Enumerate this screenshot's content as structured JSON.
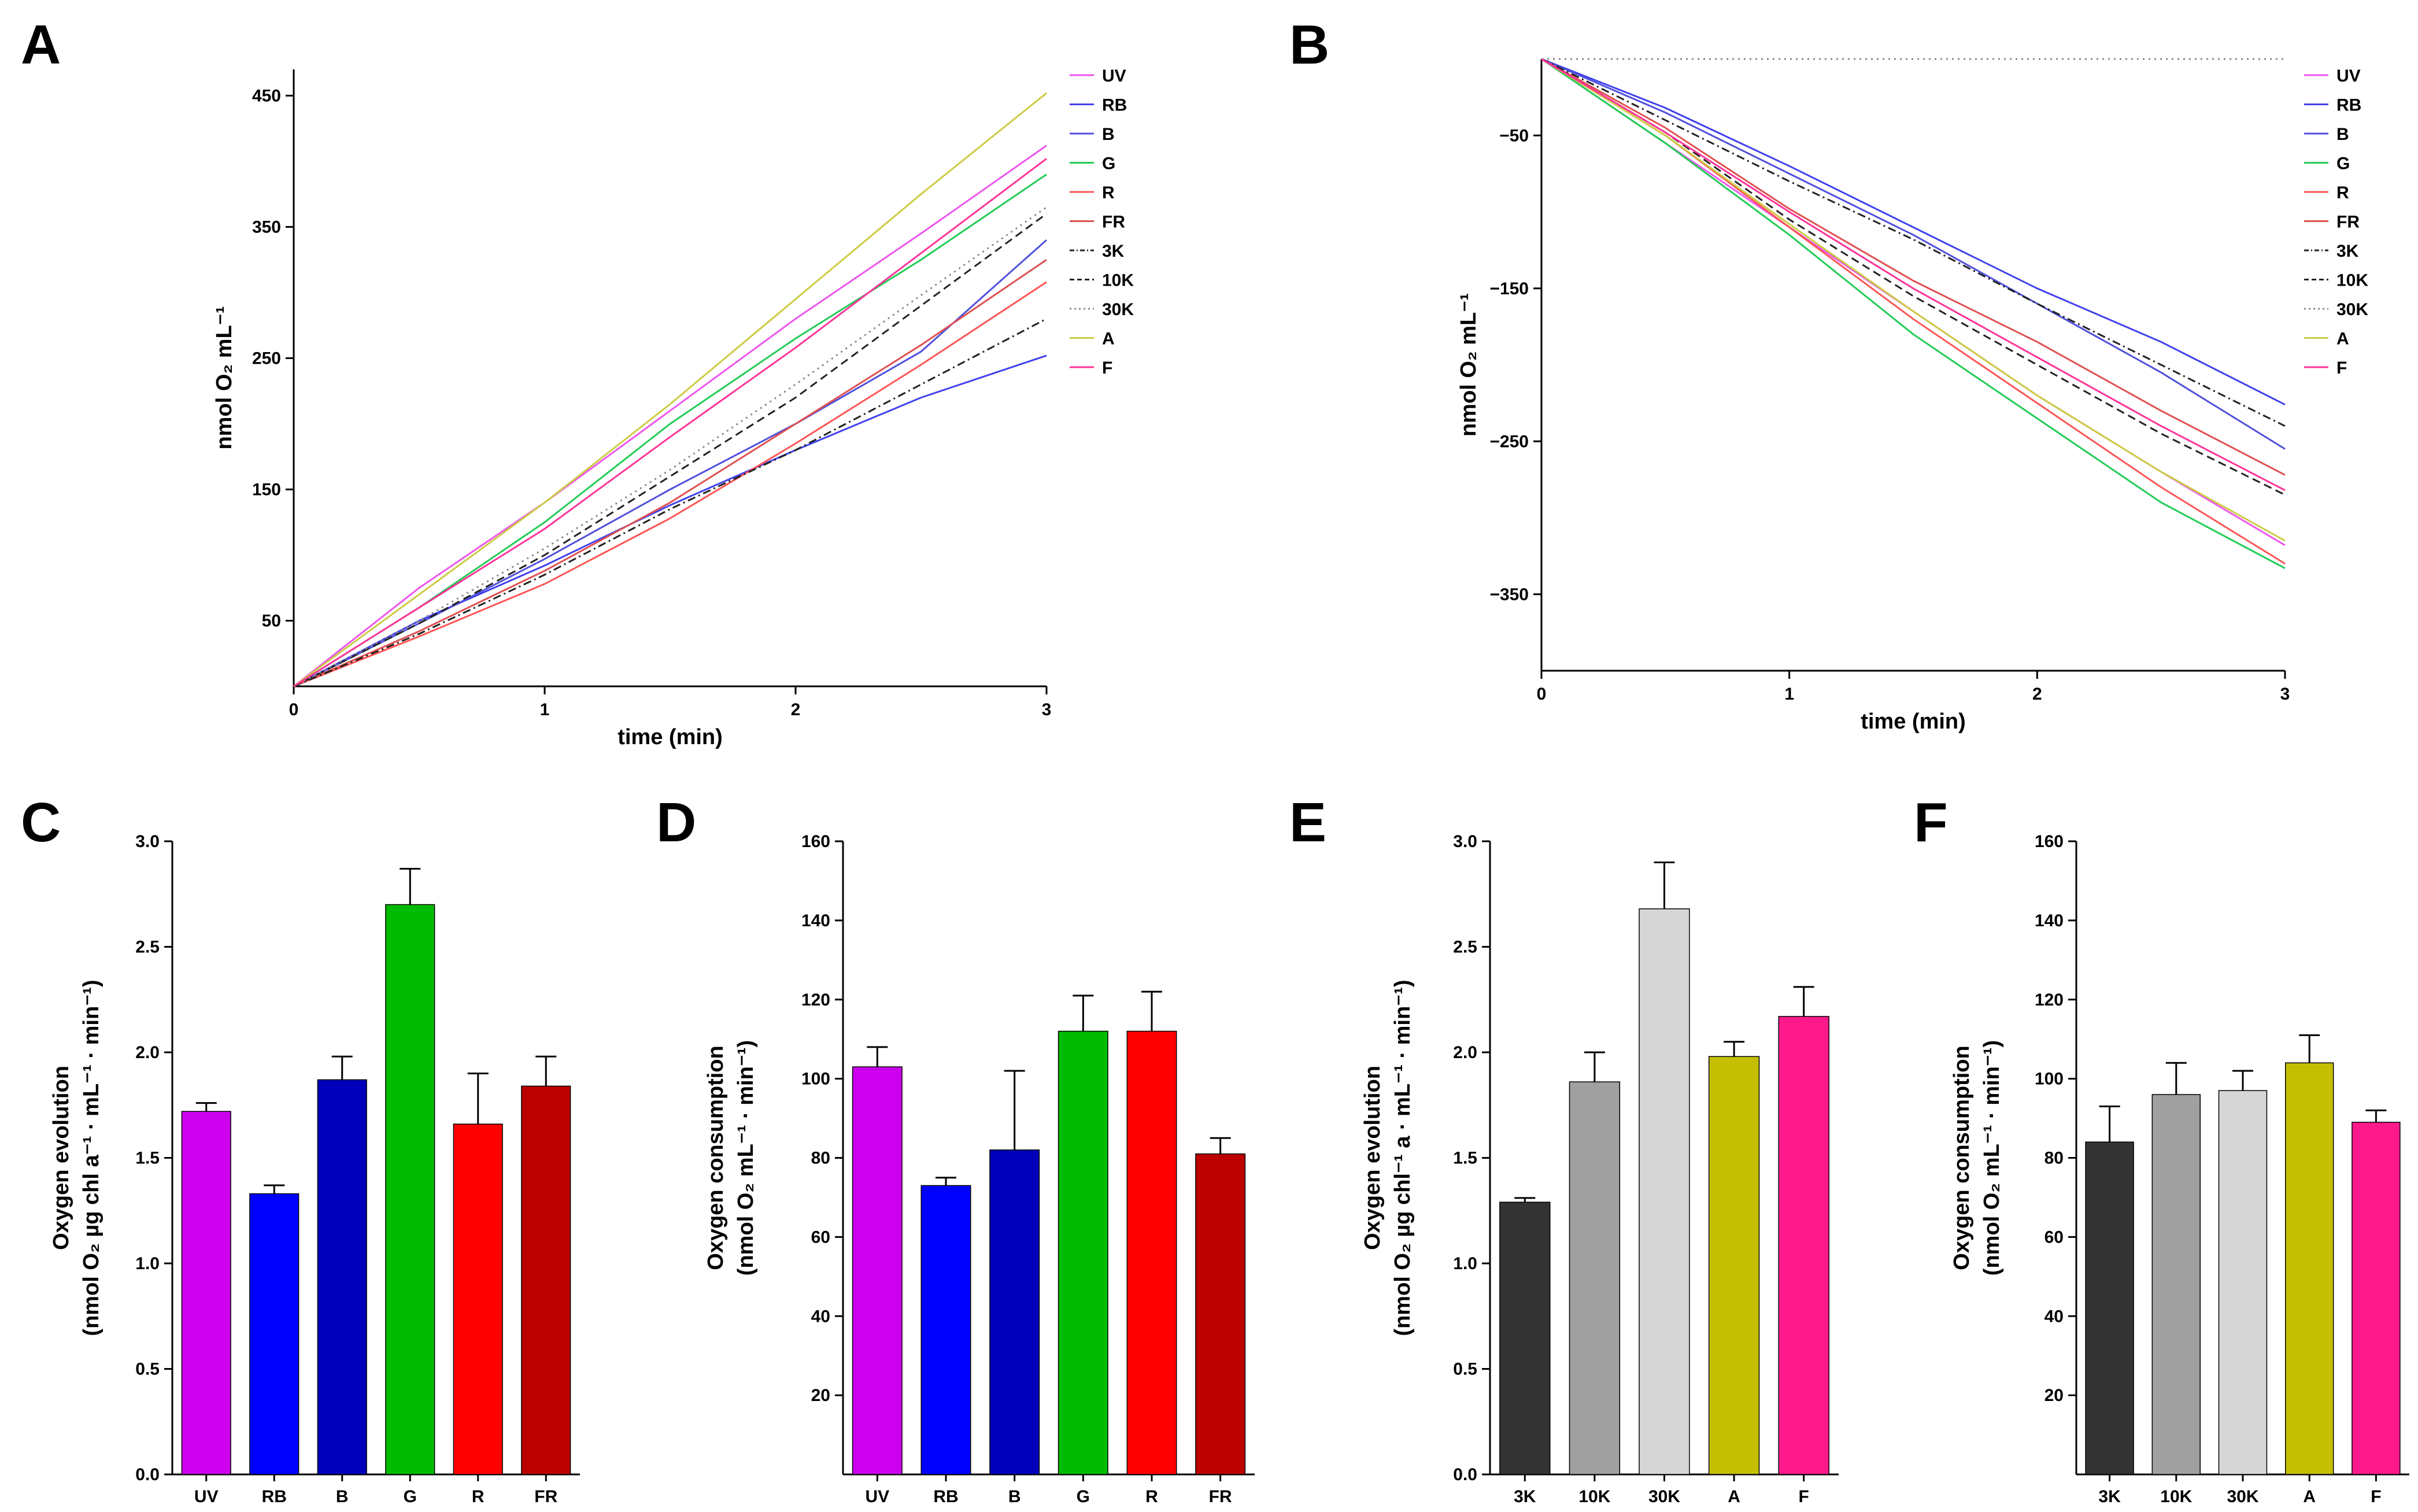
{
  "colors": {
    "UV": "#ee55ee",
    "RB": "#4040ee",
    "B": "#5050dd",
    "G": "#22cc55",
    "R": "#ff5555",
    "FR": "#e05050",
    "3K": "#222222",
    "10K": "#222222",
    "30K": "#888888",
    "A": "#cccc44",
    "F": "#ff3399",
    "bar_UV": "#cc00ee",
    "bar_RB": "#0000ff",
    "bar_B": "#0000bb",
    "bar_G": "#00bb00",
    "bar_R": "#ff0000",
    "bar_FR": "#bb0000",
    "bar_3K": "#333333",
    "bar_10K": "#a0a0a0",
    "bar_30K": "#d6d6d6",
    "bar_A": "#c4bf00",
    "bar_F": "#ff1a8c"
  },
  "chart_data": [
    {
      "id": "A",
      "letter": "A",
      "type": "line",
      "xlabel": "time (min)",
      "ylabel": "nmol O₂ mL⁻¹",
      "xlim": [
        0,
        3
      ],
      "ylim": [
        0,
        470
      ],
      "xticks": [
        0,
        1,
        2,
        3
      ],
      "yticks": [
        50,
        150,
        250,
        350,
        450
      ],
      "legend": "right",
      "series": [
        {
          "name": "UV",
          "style": "solid",
          "x": [
            0,
            0.5,
            1,
            1.5,
            2,
            2.5,
            3
          ],
          "y": [
            0,
            75,
            140,
            210,
            280,
            345,
            412
          ]
        },
        {
          "name": "RB",
          "style": "solid",
          "x": [
            0,
            0.5,
            1,
            1.5,
            2,
            2.5,
            3
          ],
          "y": [
            0,
            50,
            92,
            138,
            180,
            220,
            252
          ]
        },
        {
          "name": "B",
          "style": "solid",
          "x": [
            0,
            0.5,
            1,
            1.5,
            2,
            2.5,
            3
          ],
          "y": [
            0,
            48,
            97,
            150,
            200,
            255,
            340
          ]
        },
        {
          "name": "G",
          "style": "solid",
          "x": [
            0,
            0.5,
            1,
            1.5,
            2,
            2.5,
            3
          ],
          "y": [
            0,
            60,
            125,
            200,
            265,
            325,
            390
          ]
        },
        {
          "name": "R",
          "style": "solid",
          "x": [
            0,
            0.5,
            1,
            1.5,
            2,
            2.5,
            3
          ],
          "y": [
            0,
            38,
            78,
            128,
            185,
            245,
            308
          ]
        },
        {
          "name": "FR",
          "style": "solid",
          "x": [
            0,
            0.5,
            1,
            1.5,
            2,
            2.5,
            3
          ],
          "y": [
            0,
            42,
            88,
            140,
            200,
            260,
            325
          ]
        },
        {
          "name": "3K",
          "style": "dashdot",
          "x": [
            0,
            0.5,
            1,
            1.5,
            2,
            2.5,
            3
          ],
          "y": [
            0,
            40,
            85,
            135,
            180,
            230,
            280
          ]
        },
        {
          "name": "10K",
          "style": "dash",
          "x": [
            0,
            0.5,
            1,
            1.5,
            2,
            2.5,
            3
          ],
          "y": [
            0,
            48,
            100,
            160,
            220,
            290,
            360
          ]
        },
        {
          "name": "30K",
          "style": "dot",
          "x": [
            0,
            0.5,
            1,
            1.5,
            2,
            2.5,
            3
          ],
          "y": [
            0,
            50,
            105,
            165,
            230,
            298,
            365
          ]
        },
        {
          "name": "A",
          "style": "solid",
          "x": [
            0,
            0.5,
            1,
            1.5,
            2,
            2.5,
            3
          ],
          "y": [
            0,
            70,
            140,
            215,
            295,
            375,
            452
          ]
        },
        {
          "name": "F",
          "style": "solid",
          "x": [
            0,
            0.5,
            1,
            1.5,
            2,
            2.5,
            3
          ],
          "y": [
            0,
            60,
            120,
            190,
            258,
            330,
            402
          ]
        }
      ]
    },
    {
      "id": "B",
      "letter": "B",
      "type": "line",
      "xlabel": "time (min)",
      "ylabel": "nmol O₂ mL⁻¹",
      "xlim": [
        0,
        3
      ],
      "ylim": [
        -400,
        0
      ],
      "xticks": [
        0,
        1,
        2,
        3
      ],
      "yticks": [
        -50,
        -150,
        -250,
        -350
      ],
      "legend": "right",
      "series": [
        {
          "name": "UV",
          "style": "solid",
          "x": [
            0,
            0.5,
            1,
            1.5,
            2,
            2.5,
            3
          ],
          "y": [
            0,
            -55,
            -110,
            -165,
            -220,
            -270,
            -318
          ]
        },
        {
          "name": "RB",
          "style": "solid",
          "x": [
            0,
            0.5,
            1,
            1.5,
            2,
            2.5,
            3
          ],
          "y": [
            0,
            -32,
            -70,
            -110,
            -150,
            -185,
            -226
          ]
        },
        {
          "name": "B",
          "style": "solid",
          "x": [
            0,
            0.5,
            1,
            1.5,
            2,
            2.5,
            3
          ],
          "y": [
            0,
            -35,
            -75,
            -115,
            -160,
            -205,
            -255
          ]
        },
        {
          "name": "G",
          "style": "solid",
          "x": [
            0,
            0.5,
            1,
            1.5,
            2,
            2.5,
            3
          ],
          "y": [
            0,
            -55,
            -115,
            -180,
            -235,
            -290,
            -333
          ]
        },
        {
          "name": "R",
          "style": "solid",
          "x": [
            0,
            0.5,
            1,
            1.5,
            2,
            2.5,
            3
          ],
          "y": [
            0,
            -50,
            -110,
            -170,
            -225,
            -280,
            -330
          ]
        },
        {
          "name": "FR",
          "style": "solid",
          "x": [
            0,
            0.5,
            1,
            1.5,
            2,
            2.5,
            3
          ],
          "y": [
            0,
            -45,
            -98,
            -145,
            -185,
            -230,
            -272
          ]
        },
        {
          "name": "3K",
          "style": "dashdot",
          "x": [
            0,
            0.5,
            1,
            1.5,
            2,
            2.5,
            3
          ],
          "y": [
            0,
            -40,
            -80,
            -118,
            -160,
            -200,
            -240
          ]
        },
        {
          "name": "10K",
          "style": "dash",
          "x": [
            0,
            0.5,
            1,
            1.5,
            2,
            2.5,
            3
          ],
          "y": [
            0,
            -48,
            -105,
            -155,
            -200,
            -245,
            -285
          ]
        },
        {
          "name": "30K",
          "style": "dot",
          "x": [
            0,
            3
          ],
          "y": [
            0,
            0
          ]
        },
        {
          "name": "A",
          "style": "solid",
          "x": [
            0,
            0.5,
            1,
            1.5,
            2,
            2.5,
            3
          ],
          "y": [
            0,
            -50,
            -108,
            -165,
            -220,
            -270,
            -315
          ]
        },
        {
          "name": "F",
          "style": "solid",
          "x": [
            0,
            0.5,
            1,
            1.5,
            2,
            2.5,
            3
          ],
          "y": [
            0,
            -48,
            -100,
            -150,
            -195,
            -240,
            -282
          ]
        }
      ]
    },
    {
      "id": "C",
      "letter": "C",
      "type": "bar",
      "ylabel_line1": "Oxygen evolution",
      "ylabel_line2": "(nmol O₂ µg chl a⁻¹ · mL⁻¹ · min⁻¹)",
      "ylim": [
        0,
        3.0
      ],
      "yticks": [
        0.0,
        0.5,
        1.0,
        1.5,
        2.0,
        2.5,
        3.0
      ],
      "ytick_labels": [
        "0.0",
        "0.5",
        "1.0",
        "1.5",
        "2.0",
        "2.5",
        "3.0"
      ],
      "categories": [
        "UV",
        "RB",
        "B",
        "G",
        "R",
        "FR"
      ],
      "values": [
        1.72,
        1.33,
        1.87,
        2.7,
        1.66,
        1.84
      ],
      "errors": [
        0.04,
        0.04,
        0.11,
        0.17,
        0.24,
        0.14
      ]
    },
    {
      "id": "D",
      "letter": "D",
      "type": "bar",
      "ylabel_line1": "Oxygen consumption",
      "ylabel_line2": "(nmol O₂ mL⁻¹ · min⁻¹)",
      "ylim": [
        0,
        160
      ],
      "yticks": [
        20,
        40,
        60,
        80,
        100,
        120,
        140,
        160
      ],
      "ytick_labels": [
        "20",
        "40",
        "60",
        "80",
        "100",
        "120",
        "140",
        "160"
      ],
      "categories": [
        "UV",
        "RB",
        "B",
        "G",
        "R",
        "FR"
      ],
      "values": [
        103,
        73,
        82,
        112,
        112,
        81
      ],
      "errors": [
        5,
        2,
        20,
        9,
        10,
        4
      ]
    },
    {
      "id": "E",
      "letter": "E",
      "type": "bar",
      "ylabel_line1": "Oxygen evolution",
      "ylabel_line2": "(nmol O₂ µg chl⁻¹ a · mL⁻¹ · min⁻¹)",
      "ylim": [
        0,
        3.0
      ],
      "yticks": [
        0.0,
        0.5,
        1.0,
        1.5,
        2.0,
        2.5,
        3.0
      ],
      "ytick_labels": [
        "0.0",
        "0.5",
        "1.0",
        "1.5",
        "2.0",
        "2.5",
        "3.0"
      ],
      "categories": [
        "3K",
        "10K",
        "30K",
        "A",
        "F"
      ],
      "values": [
        1.29,
        1.86,
        2.68,
        1.98,
        2.17
      ],
      "errors": [
        0.02,
        0.14,
        0.22,
        0.07,
        0.14
      ]
    },
    {
      "id": "F",
      "letter": "F",
      "type": "bar",
      "ylabel_line1": "Oxygen consumption",
      "ylabel_line2": "(nmol O₂ mL⁻¹ · min⁻¹)",
      "ylim": [
        0,
        160
      ],
      "yticks": [
        20,
        40,
        60,
        80,
        100,
        120,
        140,
        160
      ],
      "ytick_labels": [
        "20",
        "40",
        "60",
        "80",
        "100",
        "120",
        "140",
        "160"
      ],
      "categories": [
        "3K",
        "10K",
        "30K",
        "A",
        "F"
      ],
      "values": [
        84,
        96,
        97,
        104,
        89
      ],
      "errors": [
        9,
        8,
        5,
        7,
        3
      ]
    }
  ]
}
